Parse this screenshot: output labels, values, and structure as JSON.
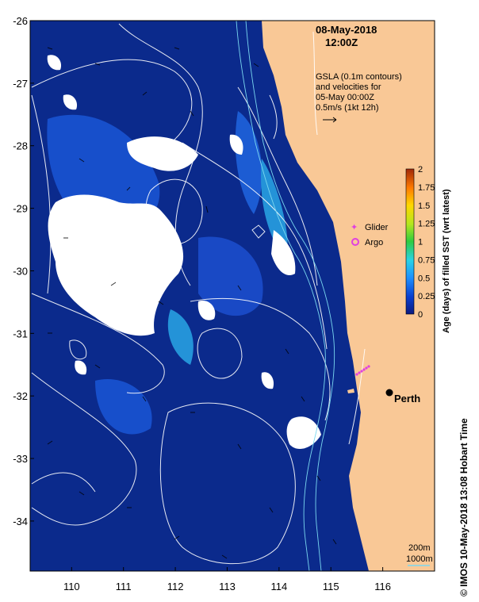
{
  "map": {
    "date": "08-May-2018",
    "time": "12:00Z",
    "gsla_lines": [
      "GSLA (0.1m contours)",
      "and velocities for",
      "05-May 00:00Z",
      "0.5m/s (1kt 12h)"
    ],
    "lat_range": [
      -34.8,
      -26.0
    ],
    "lon_range": [
      109.2,
      117.0
    ],
    "lat_ticks": [
      "-26",
      "-27",
      "-28",
      "-29",
      "-30",
      "-31",
      "-32",
      "-33",
      "-34"
    ],
    "lon_ticks": [
      "110",
      "111",
      "112",
      "113",
      "114",
      "115",
      "116"
    ],
    "colors": {
      "ocean": "#0b2a8c",
      "land": "#f9c896",
      "cloud": "#ffffff",
      "glider": "#e040e0",
      "argo": "#e040e0"
    }
  },
  "legend": {
    "glider_label": "Glider",
    "argo_label": "Argo",
    "colorbar_title": "Age (days) of filled SST (wrt latest)",
    "colorbar_ticks": [
      "2",
      "1.75",
      "1.5",
      "1.25",
      "1",
      "0.75",
      "0.5",
      "0.25",
      "0"
    ]
  },
  "places": {
    "perth": "Perth"
  },
  "isobaths": {
    "shallow": "200m",
    "deep": "1000m"
  },
  "footer": {
    "credit": "IMOS 10-May-2018 13:08 Hobart Time",
    "copyright": "©"
  }
}
